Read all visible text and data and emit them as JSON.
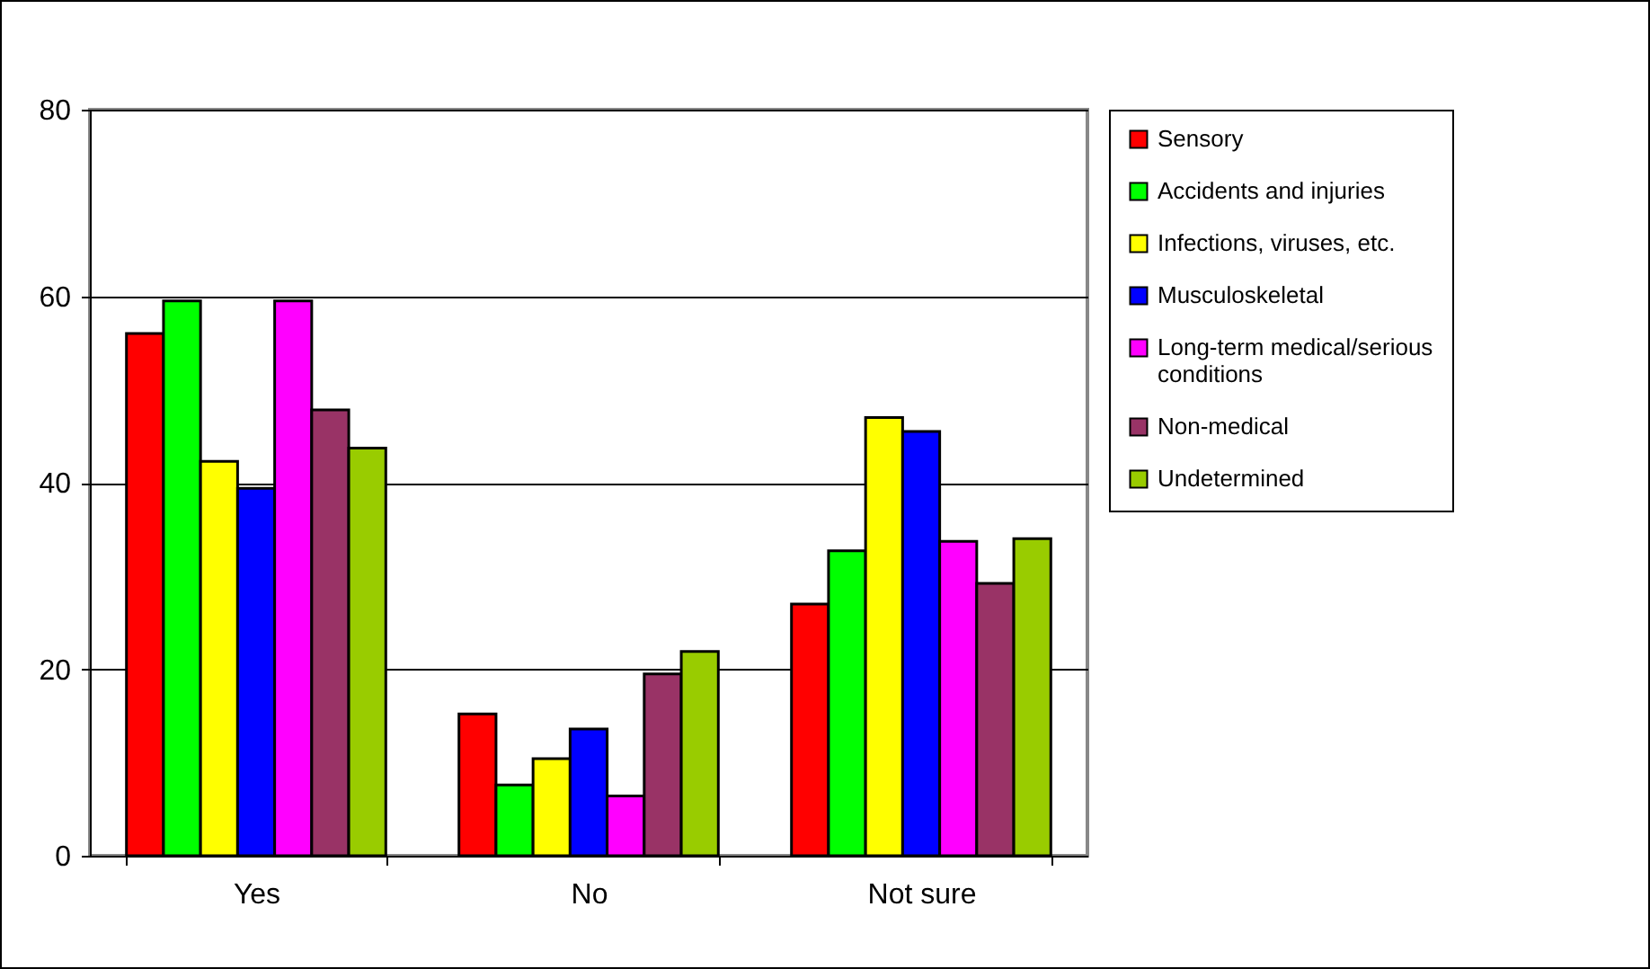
{
  "chart_data": {
    "type": "bar",
    "categories": [
      "Yes",
      "No",
      "Not sure"
    ],
    "series": [
      {
        "name": "Sensory",
        "color": "#ff0000",
        "values": [
          56,
          15.2,
          27
        ]
      },
      {
        "name": "Accidents and injuries",
        "color": "#00ff00",
        "values": [
          59.5,
          7.6,
          32.7
        ]
      },
      {
        "name": "Infections, viruses, etc.",
        "color": "#ffff00",
        "values": [
          42.3,
          10.4,
          47
        ]
      },
      {
        "name": "Musculoskeletal",
        "color": "#0000ff",
        "values": [
          39.4,
          13.6,
          45.5
        ]
      },
      {
        "name": "Long-term medical/serious conditions",
        "color": "#ff00ff",
        "values": [
          59.5,
          6.4,
          33.7
        ]
      },
      {
        "name": "Non-medical",
        "color": "#993366",
        "values": [
          47.8,
          19.5,
          29.2
        ]
      },
      {
        "name": "Undetermined",
        "color": "#99cc00",
        "values": [
          43.7,
          21.9,
          34
        ]
      }
    ],
    "ylim": [
      0,
      80
    ],
    "yticks": [
      0,
      20,
      40,
      60,
      80
    ],
    "grid": "y",
    "legend": "right"
  }
}
